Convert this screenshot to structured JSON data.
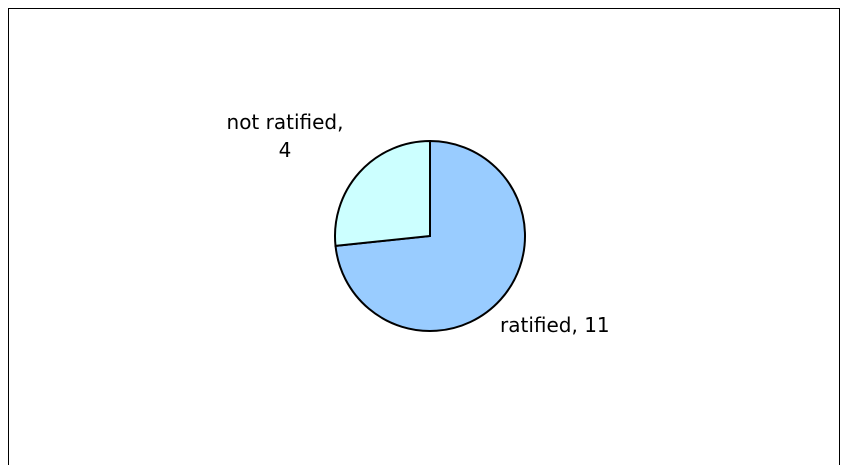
{
  "chart_data": {
    "type": "pie",
    "title": "",
    "slices": [
      {
        "label": "ratified",
        "value": 11,
        "display": "ratified, 11",
        "color": "#99ccff"
      },
      {
        "label": "not ratified",
        "value": 4,
        "display": "not ratified,\n4",
        "color": "#ccffff"
      }
    ],
    "start_angle_deg": 0,
    "legend": "none",
    "border_color": "#000000"
  }
}
